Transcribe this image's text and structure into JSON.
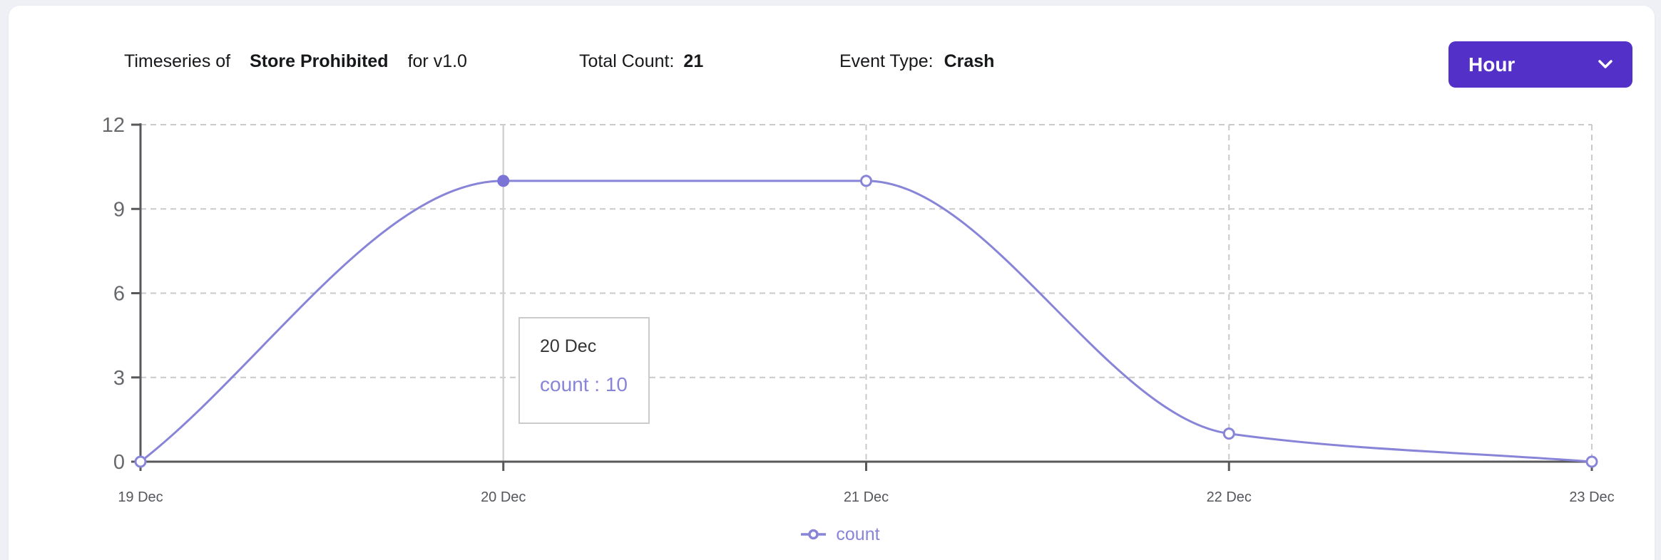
{
  "header": {
    "title_prefix": "Timeseries of",
    "title_subject": "Store Prohibited",
    "title_suffix": "for v1.0",
    "total_count_label": "Total Count:",
    "total_count_value": "21",
    "event_type_label": "Event Type:",
    "event_type_value": "Crash",
    "interval_dropdown": {
      "selected": "Hour",
      "icon": "chevron-down-icon"
    }
  },
  "chart_data": {
    "type": "line",
    "x": [
      "19 Dec",
      "20 Dec",
      "21 Dec",
      "22 Dec",
      "23 Dec"
    ],
    "series": [
      {
        "name": "count",
        "values": [
          0,
          10,
          10,
          1,
          0
        ]
      }
    ],
    "y_ticks": [
      0,
      3,
      6,
      9,
      12
    ],
    "ylim": [
      0,
      12
    ],
    "xlabel": "",
    "ylabel": "",
    "grid": true,
    "grid_style": "dashed",
    "curve": "monotone",
    "legend_position": "bottom",
    "point_style": "hollow-circle"
  },
  "tooltip": {
    "title": "20 Dec",
    "value_label": "count : 10",
    "active_index": 1
  },
  "legend": {
    "items": [
      {
        "label": "count",
        "icon": "line-circle-marker-icon"
      }
    ]
  },
  "colors": {
    "accent_purple": "#5330c8",
    "series_purple": "#8884d8",
    "active_dot": "#7b74d6",
    "axis": "#59595c",
    "grid": "#c9c9c9",
    "crosshair": "#d2d2d2",
    "x_label": "#54565c",
    "y_label": "#67686b",
    "tooltip_border": "#cbcbcb",
    "tooltip_title": "#353535",
    "page_background": "#eef0f6",
    "card_background": "#ffffff"
  }
}
